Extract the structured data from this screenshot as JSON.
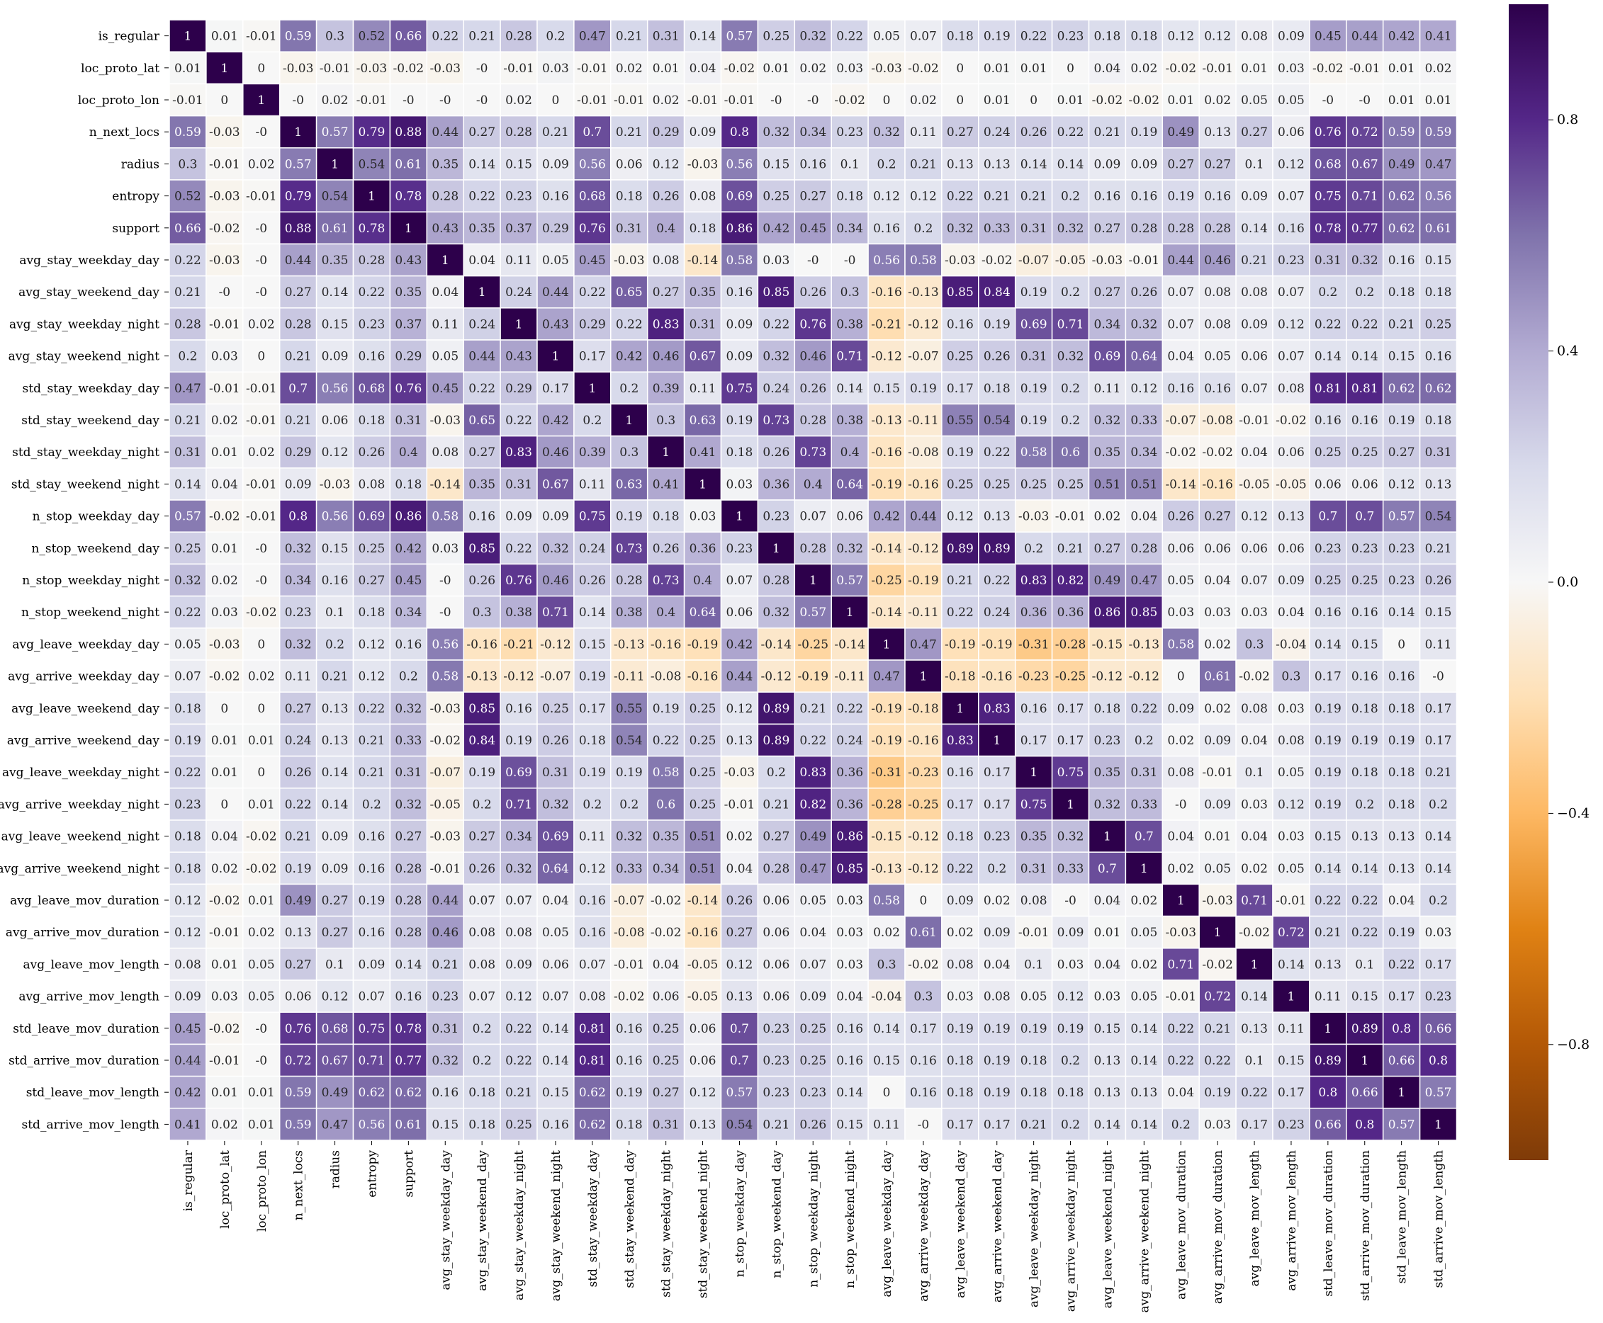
{
  "chart_data": {
    "type": "heatmap",
    "title": "",
    "xlabel": "",
    "ylabel": "",
    "variables": [
      "is_regular",
      "loc_proto_lat",
      "loc_proto_lon",
      "n_next_locs",
      "radius",
      "entropy",
      "support",
      "avg_stay_weekday_day",
      "avg_stay_weekend_day",
      "avg_stay_weekday_night",
      "avg_stay_weekend_night",
      "std_stay_weekday_day",
      "std_stay_weekend_day",
      "std_stay_weekday_night",
      "std_stay_weekend_night",
      "n_stop_weekday_day",
      "n_stop_weekend_day",
      "n_stop_weekday_night",
      "n_stop_weekend_night",
      "avg_leave_weekday_day",
      "avg_arrive_weekday_day",
      "avg_leave_weekend_day",
      "avg_arrive_weekend_day",
      "avg_leave_weekday_night",
      "avg_arrive_weekday_night",
      "avg_leave_weekend_night",
      "avg_arrive_weekend_night",
      "avg_leave_mov_duration",
      "avg_arrive_mov_duration",
      "avg_leave_mov_length",
      "avg_arrive_mov_length",
      "std_leave_mov_duration",
      "std_arrive_mov_duration",
      "std_leave_mov_length",
      "std_arrive_mov_length"
    ],
    "values": [
      [
        1,
        0.01,
        -0.01,
        0.59,
        0.3,
        0.52,
        0.66,
        0.22,
        0.21,
        0.28,
        0.2,
        0.47,
        0.21,
        0.31,
        0.14,
        0.57,
        0.25,
        0.32,
        0.22,
        0.05,
        0.07,
        0.18,
        0.19,
        0.22,
        0.23,
        0.18,
        0.18,
        0.12,
        0.12,
        0.08,
        0.09,
        0.45,
        0.44,
        0.42,
        0.41
      ],
      [
        0.01,
        1,
        0,
        -0.03,
        -0.01,
        -0.03,
        -0.02,
        -0.03,
        "-0",
        -0.01,
        0.03,
        -0.01,
        0.02,
        0.01,
        0.04,
        -0.02,
        0.01,
        0.02,
        0.03,
        -0.03,
        -0.02,
        0,
        0.01,
        0.01,
        0,
        0.04,
        0.02,
        -0.02,
        -0.01,
        0.01,
        0.03,
        -0.02,
        -0.01,
        0.01,
        0.02
      ],
      [
        -0.01,
        0,
        1,
        "-0",
        0.02,
        -0.01,
        "-0",
        "-0",
        "-0",
        0.02,
        0,
        -0.01,
        -0.01,
        0.02,
        -0.01,
        -0.01,
        "-0",
        "-0",
        -0.02,
        0,
        0.02,
        0,
        0.01,
        0,
        0.01,
        -0.02,
        -0.02,
        0.01,
        0.02,
        0.05,
        0.05,
        "-0",
        "-0",
        0.01,
        0.01
      ],
      [
        0.59,
        -0.03,
        "-0",
        1,
        0.57,
        0.79,
        0.88,
        0.44,
        0.27,
        0.28,
        0.21,
        0.7,
        0.21,
        0.29,
        0.09,
        0.8,
        0.32,
        0.34,
        0.23,
        0.32,
        0.11,
        0.27,
        0.24,
        0.26,
        0.22,
        0.21,
        0.19,
        0.49,
        0.13,
        0.27,
        0.06,
        0.76,
        0.72,
        0.59,
        0.59
      ],
      [
        0.3,
        -0.01,
        0.02,
        0.57,
        1,
        0.54,
        0.61,
        0.35,
        0.14,
        0.15,
        0.09,
        0.56,
        0.06,
        0.12,
        -0.03,
        0.56,
        0.15,
        0.16,
        0.1,
        0.2,
        0.21,
        0.13,
        0.13,
        0.14,
        0.14,
        0.09,
        0.09,
        0.27,
        0.27,
        0.1,
        0.12,
        0.68,
        0.67,
        0.49,
        0.47
      ],
      [
        0.52,
        -0.03,
        -0.01,
        0.79,
        0.54,
        1,
        0.78,
        0.28,
        0.22,
        0.23,
        0.16,
        0.68,
        0.18,
        0.26,
        0.08,
        0.69,
        0.25,
        0.27,
        0.18,
        0.12,
        0.12,
        0.22,
        0.21,
        0.21,
        0.2,
        0.16,
        0.16,
        0.19,
        0.16,
        0.09,
        0.07,
        0.75,
        0.71,
        0.62,
        0.56
      ],
      [
        0.66,
        -0.02,
        "-0",
        0.88,
        0.61,
        0.78,
        1,
        0.43,
        0.35,
        0.37,
        0.29,
        0.76,
        0.31,
        0.4,
        0.18,
        0.86,
        0.42,
        0.45,
        0.34,
        0.16,
        0.2,
        0.32,
        0.33,
        0.31,
        0.32,
        0.27,
        0.28,
        0.28,
        0.28,
        0.14,
        0.16,
        0.78,
        0.77,
        0.62,
        0.61
      ],
      [
        0.22,
        -0.03,
        "-0",
        0.44,
        0.35,
        0.28,
        0.43,
        1,
        0.04,
        0.11,
        0.05,
        0.45,
        -0.03,
        0.08,
        -0.14,
        0.58,
        0.03,
        "-0",
        "-0",
        0.56,
        0.58,
        -0.03,
        -0.02,
        -0.07,
        -0.05,
        -0.03,
        -0.01,
        0.44,
        0.46,
        0.21,
        0.23,
        0.31,
        0.32,
        0.16,
        0.15
      ],
      [
        0.21,
        "-0",
        "-0",
        0.27,
        0.14,
        0.22,
        0.35,
        0.04,
        1,
        0.24,
        0.44,
        0.22,
        0.65,
        0.27,
        0.35,
        0.16,
        0.85,
        0.26,
        0.3,
        -0.16,
        -0.13,
        0.85,
        0.84,
        0.19,
        0.2,
        0.27,
        0.26,
        0.07,
        0.08,
        0.08,
        0.07,
        0.2,
        0.2,
        0.18,
        0.18
      ],
      [
        0.28,
        -0.01,
        0.02,
        0.28,
        0.15,
        0.23,
        0.37,
        0.11,
        0.24,
        1,
        0.43,
        0.29,
        0.22,
        0.83,
        0.31,
        0.09,
        0.22,
        0.76,
        0.38,
        -0.21,
        -0.12,
        0.16,
        0.19,
        0.69,
        0.71,
        0.34,
        0.32,
        0.07,
        0.08,
        0.09,
        0.12,
        0.22,
        0.22,
        0.21,
        0.25
      ],
      [
        0.2,
        0.03,
        0,
        0.21,
        0.09,
        0.16,
        0.29,
        0.05,
        0.44,
        0.43,
        1,
        0.17,
        0.42,
        0.46,
        0.67,
        0.09,
        0.32,
        0.46,
        0.71,
        -0.12,
        -0.07,
        0.25,
        0.26,
        0.31,
        0.32,
        0.69,
        0.64,
        0.04,
        0.05,
        0.06,
        0.07,
        0.14,
        0.14,
        0.15,
        0.16
      ],
      [
        0.47,
        -0.01,
        -0.01,
        0.7,
        0.56,
        0.68,
        0.76,
        0.45,
        0.22,
        0.29,
        0.17,
        1,
        0.2,
        0.39,
        0.11,
        0.75,
        0.24,
        0.26,
        0.14,
        0.15,
        0.19,
        0.17,
        0.18,
        0.19,
        0.2,
        0.11,
        0.12,
        0.16,
        0.16,
        0.07,
        0.08,
        0.81,
        0.81,
        0.62,
        0.62
      ],
      [
        0.21,
        0.02,
        -0.01,
        0.21,
        0.06,
        0.18,
        0.31,
        -0.03,
        0.65,
        0.22,
        0.42,
        0.2,
        1,
        0.3,
        0.63,
        0.19,
        0.73,
        0.28,
        0.38,
        -0.13,
        -0.11,
        0.55,
        0.54,
        0.19,
        0.2,
        0.32,
        0.33,
        -0.07,
        -0.08,
        -0.01,
        -0.02,
        0.16,
        0.16,
        0.19,
        0.18
      ],
      [
        0.31,
        0.01,
        0.02,
        0.29,
        0.12,
        0.26,
        0.4,
        0.08,
        0.27,
        0.83,
        0.46,
        0.39,
        0.3,
        1,
        0.41,
        0.18,
        0.26,
        0.73,
        0.4,
        -0.16,
        -0.08,
        0.19,
        0.22,
        0.58,
        0.6,
        0.35,
        0.34,
        -0.02,
        -0.02,
        0.04,
        0.06,
        0.25,
        0.25,
        0.27,
        0.31
      ],
      [
        0.14,
        0.04,
        -0.01,
        0.09,
        -0.03,
        0.08,
        0.18,
        -0.14,
        0.35,
        0.31,
        0.67,
        0.11,
        0.63,
        0.41,
        1,
        0.03,
        0.36,
        0.4,
        0.64,
        -0.19,
        -0.16,
        0.25,
        0.25,
        0.25,
        0.25,
        0.51,
        0.51,
        -0.14,
        -0.16,
        -0.05,
        -0.05,
        0.06,
        0.06,
        0.12,
        0.13
      ],
      [
        0.57,
        -0.02,
        -0.01,
        0.8,
        0.56,
        0.69,
        0.86,
        0.58,
        0.16,
        0.09,
        0.09,
        0.75,
        0.19,
        0.18,
        0.03,
        1,
        0.23,
        0.07,
        0.06,
        0.42,
        0.44,
        0.12,
        0.13,
        -0.03,
        -0.01,
        0.02,
        0.04,
        0.26,
        0.27,
        0.12,
        0.13,
        0.7,
        0.7,
        0.57,
        0.54
      ],
      [
        0.25,
        0.01,
        "-0",
        0.32,
        0.15,
        0.25,
        0.42,
        0.03,
        0.85,
        0.22,
        0.32,
        0.24,
        0.73,
        0.26,
        0.36,
        0.23,
        1,
        0.28,
        0.32,
        -0.14,
        -0.12,
        0.89,
        0.89,
        0.2,
        0.21,
        0.27,
        0.28,
        0.06,
        0.06,
        0.06,
        0.06,
        0.23,
        0.23,
        0.23,
        0.21
      ],
      [
        0.32,
        0.02,
        "-0",
        0.34,
        0.16,
        0.27,
        0.45,
        "-0",
        0.26,
        0.76,
        0.46,
        0.26,
        0.28,
        0.73,
        0.4,
        0.07,
        0.28,
        1,
        0.57,
        -0.25,
        -0.19,
        0.21,
        0.22,
        0.83,
        0.82,
        0.49,
        0.47,
        0.05,
        0.04,
        0.07,
        0.09,
        0.25,
        0.25,
        0.23,
        0.26
      ],
      [
        0.22,
        0.03,
        -0.02,
        0.23,
        0.1,
        0.18,
        0.34,
        "-0",
        0.3,
        0.38,
        0.71,
        0.14,
        0.38,
        0.4,
        0.64,
        0.06,
        0.32,
        0.57,
        1,
        -0.14,
        -0.11,
        0.22,
        0.24,
        0.36,
        0.36,
        0.86,
        0.85,
        0.03,
        0.03,
        0.03,
        0.04,
        0.16,
        0.16,
        0.14,
        0.15
      ],
      [
        0.05,
        -0.03,
        0,
        0.32,
        0.2,
        0.12,
        0.16,
        0.56,
        -0.16,
        -0.21,
        -0.12,
        0.15,
        -0.13,
        -0.16,
        -0.19,
        0.42,
        -0.14,
        -0.25,
        -0.14,
        1,
        0.47,
        -0.19,
        -0.19,
        -0.31,
        -0.28,
        -0.15,
        -0.13,
        0.58,
        0.02,
        0.3,
        -0.04,
        0.14,
        0.15,
        0,
        0.11
      ],
      [
        0.07,
        -0.02,
        0.02,
        0.11,
        0.21,
        0.12,
        0.2,
        0.58,
        -0.13,
        -0.12,
        -0.07,
        0.19,
        -0.11,
        -0.08,
        -0.16,
        0.44,
        -0.12,
        -0.19,
        -0.11,
        0.47,
        1,
        -0.18,
        -0.16,
        -0.23,
        -0.25,
        -0.12,
        -0.12,
        0,
        0.61,
        -0.02,
        0.3,
        0.17,
        0.16,
        0.16,
        "-0"
      ],
      [
        0.18,
        0,
        0,
        0.27,
        0.13,
        0.22,
        0.32,
        -0.03,
        0.85,
        0.16,
        0.25,
        0.17,
        0.55,
        0.19,
        0.25,
        0.12,
        0.89,
        0.21,
        0.22,
        -0.19,
        -0.18,
        1,
        0.83,
        0.16,
        0.17,
        0.18,
        0.22,
        0.09,
        0.02,
        0.08,
        0.03,
        0.19,
        0.18,
        0.18,
        0.17
      ],
      [
        0.19,
        0.01,
        0.01,
        0.24,
        0.13,
        0.21,
        0.33,
        -0.02,
        0.84,
        0.19,
        0.26,
        0.18,
        0.54,
        0.22,
        0.25,
        0.13,
        0.89,
        0.22,
        0.24,
        -0.19,
        -0.16,
        0.83,
        1,
        0.17,
        0.17,
        0.23,
        0.2,
        0.02,
        0.09,
        0.04,
        0.08,
        0.19,
        0.19,
        0.19,
        0.17
      ],
      [
        0.22,
        0.01,
        0,
        0.26,
        0.14,
        0.21,
        0.31,
        -0.07,
        0.19,
        0.69,
        0.31,
        0.19,
        0.19,
        0.58,
        0.25,
        -0.03,
        0.2,
        0.83,
        0.36,
        -0.31,
        -0.23,
        0.16,
        0.17,
        1,
        0.75,
        0.35,
        0.31,
        0.08,
        -0.01,
        0.1,
        0.05,
        0.19,
        0.18,
        0.18,
        0.21
      ],
      [
        0.23,
        0,
        0.01,
        0.22,
        0.14,
        0.2,
        0.32,
        -0.05,
        0.2,
        0.71,
        0.32,
        0.2,
        0.2,
        0.6,
        0.25,
        -0.01,
        0.21,
        0.82,
        0.36,
        -0.28,
        -0.25,
        0.17,
        0.17,
        0.75,
        1,
        0.32,
        0.33,
        "-0",
        0.09,
        0.03,
        0.12,
        0.19,
        0.2,
        0.18,
        0.2
      ],
      [
        0.18,
        0.04,
        -0.02,
        0.21,
        0.09,
        0.16,
        0.27,
        -0.03,
        0.27,
        0.34,
        0.69,
        0.11,
        0.32,
        0.35,
        0.51,
        0.02,
        0.27,
        0.49,
        0.86,
        -0.15,
        -0.12,
        0.18,
        0.23,
        0.35,
        0.32,
        1,
        0.7,
        0.04,
        0.01,
        0.04,
        0.03,
        0.15,
        0.13,
        0.13,
        0.14
      ],
      [
        0.18,
        0.02,
        -0.02,
        0.19,
        0.09,
        0.16,
        0.28,
        -0.01,
        0.26,
        0.32,
        0.64,
        0.12,
        0.33,
        0.34,
        0.51,
        0.04,
        0.28,
        0.47,
        0.85,
        -0.13,
        -0.12,
        0.22,
        0.2,
        0.31,
        0.33,
        0.7,
        1,
        0.02,
        0.05,
        0.02,
        0.05,
        0.14,
        0.14,
        0.13,
        0.14
      ],
      [
        0.12,
        -0.02,
        0.01,
        0.49,
        0.27,
        0.19,
        0.28,
        0.44,
        0.07,
        0.07,
        0.04,
        0.16,
        -0.07,
        -0.02,
        -0.14,
        0.26,
        0.06,
        0.05,
        0.03,
        0.58,
        0,
        0.09,
        0.02,
        0.08,
        "-0",
        0.04,
        0.02,
        1,
        -0.03,
        0.71,
        -0.01,
        0.22,
        0.22,
        0.04,
        0.2
      ],
      [
        0.12,
        -0.01,
        0.02,
        0.13,
        0.27,
        0.16,
        0.28,
        0.46,
        0.08,
        0.08,
        0.05,
        0.16,
        -0.08,
        -0.02,
        -0.16,
        0.27,
        0.06,
        0.04,
        0.03,
        0.02,
        0.61,
        0.02,
        0.09,
        -0.01,
        0.09,
        0.01,
        0.05,
        -0.03,
        1,
        -0.02,
        0.72,
        0.21,
        0.22,
        0.19,
        0.03
      ],
      [
        0.08,
        0.01,
        0.05,
        0.27,
        0.1,
        0.09,
        0.14,
        0.21,
        0.08,
        0.09,
        0.06,
        0.07,
        -0.01,
        0.04,
        -0.05,
        0.12,
        0.06,
        0.07,
        0.03,
        0.3,
        -0.02,
        0.08,
        0.04,
        0.1,
        0.03,
        0.04,
        0.02,
        0.71,
        -0.02,
        1,
        0.14,
        0.13,
        0.1,
        0.22,
        0.17
      ],
      [
        0.09,
        0.03,
        0.05,
        0.06,
        0.12,
        0.07,
        0.16,
        0.23,
        0.07,
        0.12,
        0.07,
        0.08,
        -0.02,
        0.06,
        -0.05,
        0.13,
        0.06,
        0.09,
        0.04,
        -0.04,
        0.3,
        0.03,
        0.08,
        0.05,
        0.12,
        0.03,
        0.05,
        -0.01,
        0.72,
        0.14,
        1,
        0.11,
        0.15,
        0.17,
        0.23
      ],
      [
        0.45,
        -0.02,
        "-0",
        0.76,
        0.68,
        0.75,
        0.78,
        0.31,
        0.2,
        0.22,
        0.14,
        0.81,
        0.16,
        0.25,
        0.06,
        0.7,
        0.23,
        0.25,
        0.16,
        0.14,
        0.17,
        0.19,
        0.19,
        0.19,
        0.19,
        0.15,
        0.14,
        0.22,
        0.21,
        0.13,
        0.11,
        1,
        0.89,
        0.8,
        0.66
      ],
      [
        0.44,
        -0.01,
        "-0",
        0.72,
        0.67,
        0.71,
        0.77,
        0.32,
        0.2,
        0.22,
        0.14,
        0.81,
        0.16,
        0.25,
        0.06,
        0.7,
        0.23,
        0.25,
        0.16,
        0.15,
        0.16,
        0.18,
        0.19,
        0.18,
        0.2,
        0.13,
        0.14,
        0.22,
        0.22,
        0.1,
        0.15,
        0.89,
        1,
        0.66,
        0.8
      ],
      [
        0.42,
        0.01,
        0.01,
        0.59,
        0.49,
        0.62,
        0.62,
        0.16,
        0.18,
        0.21,
        0.15,
        0.62,
        0.19,
        0.27,
        0.12,
        0.57,
        0.23,
        0.23,
        0.14,
        0,
        0.16,
        0.18,
        0.19,
        0.18,
        0.18,
        0.13,
        0.13,
        0.04,
        0.19,
        0.22,
        0.17,
        0.8,
        0.66,
        1,
        0.57
      ],
      [
        0.41,
        0.02,
        0.01,
        0.59,
        0.47,
        0.56,
        0.61,
        0.15,
        0.18,
        0.25,
        0.16,
        0.62,
        0.18,
        0.31,
        0.13,
        0.54,
        0.21,
        0.26,
        0.15,
        0.11,
        "-0",
        0.17,
        0.17,
        0.21,
        0.2,
        0.14,
        0.14,
        0.2,
        0.03,
        0.17,
        0.23,
        0.66,
        0.8,
        0.57,
        1
      ]
    ],
    "colorbar": {
      "colormap": "PuOr",
      "range": [
        -1,
        1
      ],
      "tick_values": [
        0.8,
        0.4,
        0.0,
        -0.4,
        -0.8
      ],
      "tick_labels": [
        "0.8",
        "0.4",
        "0.0",
        "−0.4",
        "−0.8"
      ]
    },
    "grid": true,
    "cell_border_color": "#ffffff",
    "annotations": true
  }
}
